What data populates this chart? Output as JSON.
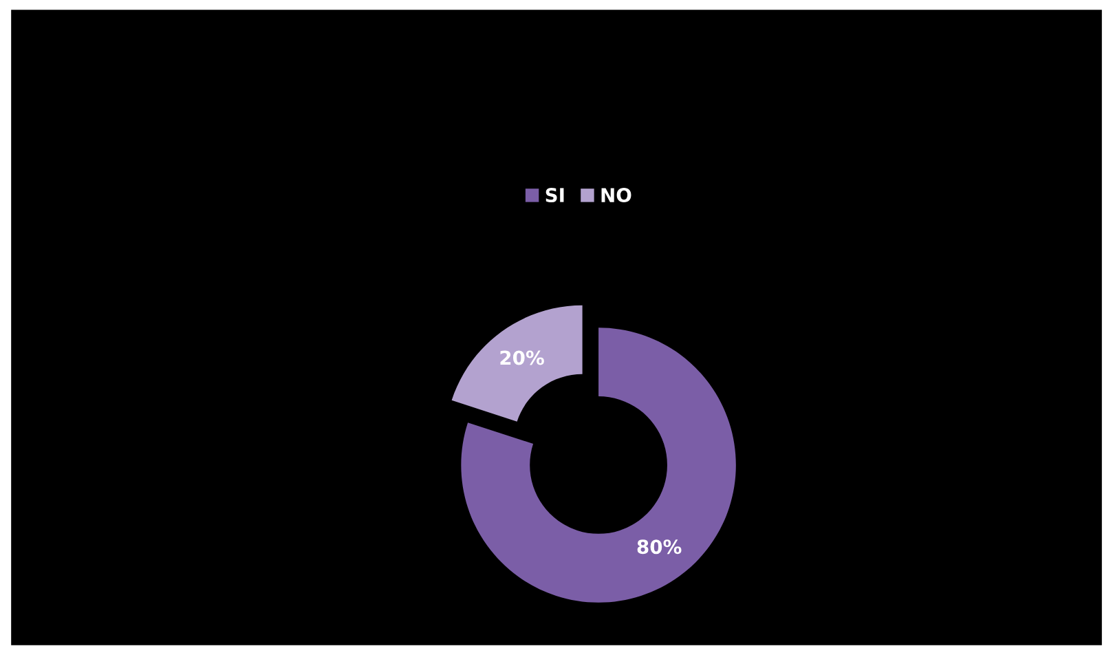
{
  "chart_data": {
    "type": "donut",
    "categories": [
      "SI",
      "NO"
    ],
    "values": [
      80,
      20
    ],
    "colors": [
      "#7b5ea7",
      "#b3a2cf"
    ],
    "value_labels": [
      "80%",
      "20%"
    ],
    "legend": "top"
  }
}
